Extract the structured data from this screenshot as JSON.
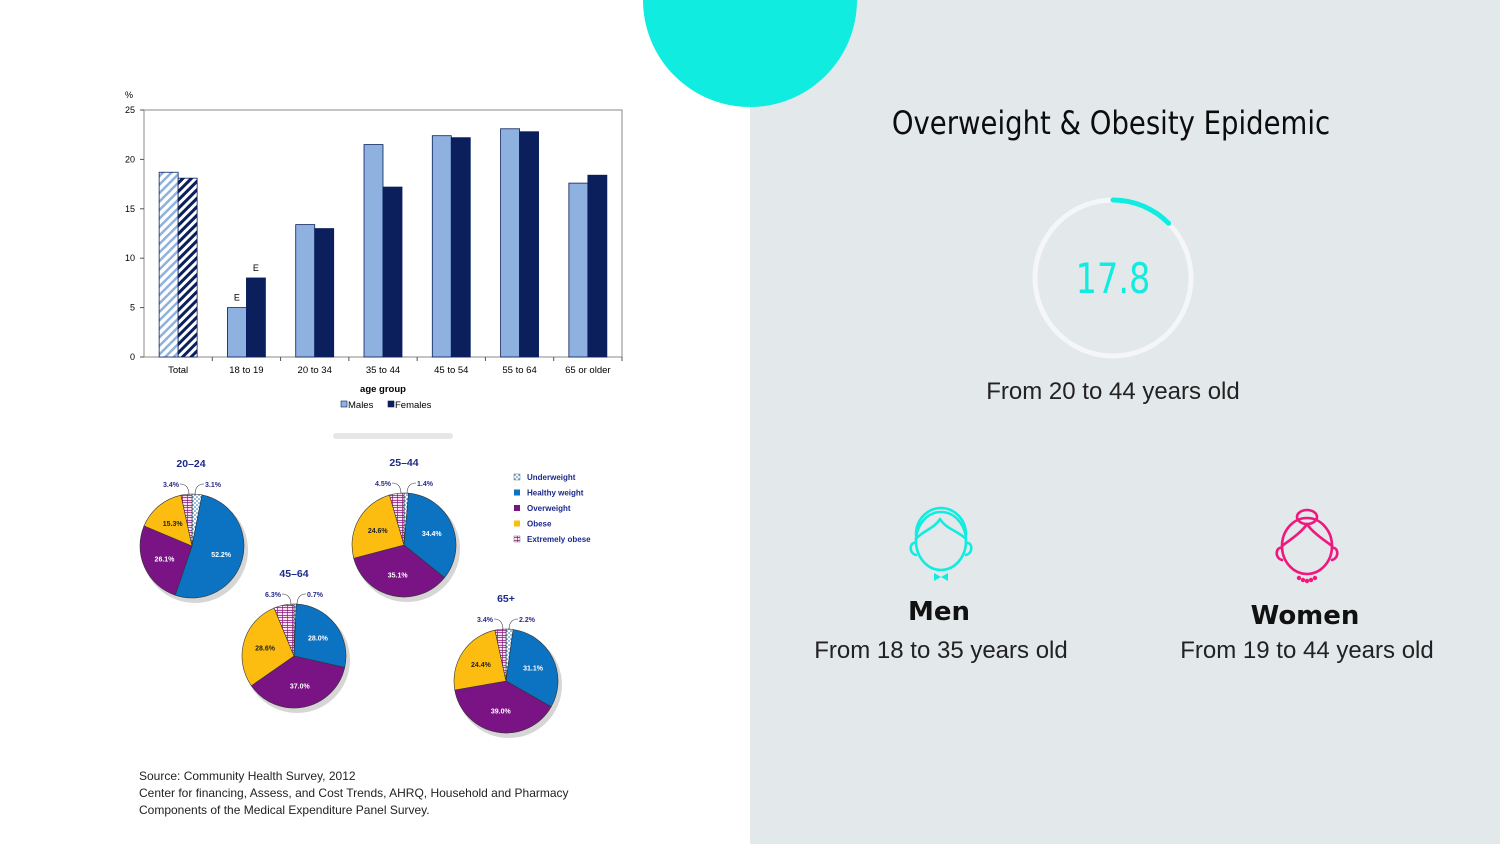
{
  "title": "Overweight & Obesity Epidemic",
  "gauge": {
    "value": "17.8",
    "fraction": 0.11,
    "caption": "From 20 to 44 years old"
  },
  "men": {
    "title": "Men",
    "desc": "From 18 to 35 years old"
  },
  "women": {
    "title": "Women",
    "desc": "From 19 to 44 years old"
  },
  "source": {
    "line1": "Source:  Community Health Survey, 2012",
    "line2": "Center for financing, Assess, and Cost Trends, AHRQ, Household and Pharmacy",
    "line3": "Components of the Medical Expenditure Panel Survey."
  },
  "colors": {
    "accent": "#11ece0",
    "women": "#f0177e",
    "males": "#8eb1df",
    "females": "#0a1f5c",
    "panel": "#e3e8ea"
  },
  "chart_data": [
    {
      "type": "bar",
      "title": "",
      "ylabel": "%",
      "xlabel": "age group",
      "ylim": [
        0,
        25
      ],
      "yticks": [
        0,
        5,
        10,
        15,
        20,
        25
      ],
      "categories": [
        "Total",
        "18 to 19",
        "20 to 34",
        "35 to 44",
        "45 to 54",
        "55 to 64",
        "65 or older"
      ],
      "series": [
        {
          "name": "Males",
          "values": [
            18.7,
            5.0,
            13.4,
            21.5,
            22.4,
            23.1,
            17.6
          ]
        },
        {
          "name": "Females",
          "values": [
            18.1,
            8.0,
            13.0,
            17.2,
            22.2,
            22.8,
            18.4
          ]
        }
      ],
      "annotations": [
        {
          "category": "18 to 19",
          "series": "Males",
          "text": "E"
        },
        {
          "category": "18 to 19",
          "series": "Females",
          "text": "E"
        }
      ],
      "legend": "bottom",
      "legend_labels": [
        "Males",
        "Females"
      ]
    },
    {
      "type": "pie",
      "categories": [
        "Underweight",
        "Healthy weight",
        "Overweight",
        "Obese",
        "Extremely obese"
      ],
      "colors": [
        "#cfe3f5",
        "#0c72c2",
        "#7a1484",
        "#fdbd10",
        "#f3d2ec"
      ],
      "legend": "right",
      "pies": [
        {
          "title": "20–24",
          "values": [
            3.1,
            52.2,
            26.1,
            15.3,
            3.4
          ],
          "labels": [
            "3.1%",
            "52.2%",
            "26.1%",
            "15.3%",
            "3.4%"
          ]
        },
        {
          "title": "25–44",
          "values": [
            1.4,
            34.4,
            35.1,
            24.6,
            4.5
          ],
          "labels": [
            "1.4%",
            "34.4%",
            "35.1%",
            "24.6%",
            "4.5%"
          ]
        },
        {
          "title": "45–64",
          "values": [
            0.7,
            28.0,
            37.0,
            28.6,
            6.3
          ],
          "labels": [
            "0.7%",
            "28.0%",
            "37.0%",
            "28.6%",
            "6.3%"
          ]
        },
        {
          "title": "65+",
          "values": [
            2.2,
            31.1,
            39.0,
            24.4,
            3.4
          ],
          "labels": [
            "2.2%",
            "31.1%",
            "39.0%",
            "24.4%",
            "3.4%"
          ]
        }
      ]
    }
  ]
}
